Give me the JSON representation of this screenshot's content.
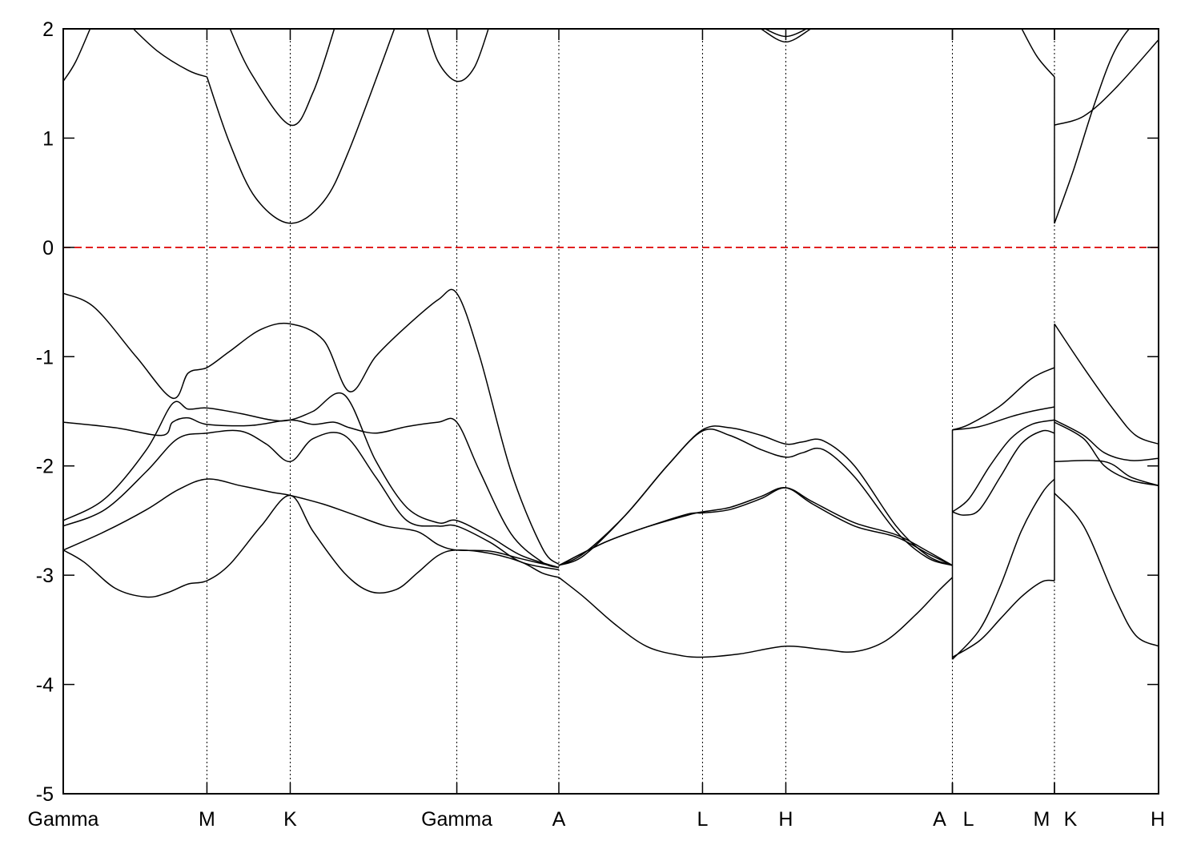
{
  "chart_data": {
    "type": "line",
    "title": "",
    "xlabel": "",
    "ylabel": "",
    "xlim": [
      0,
      10.52
    ],
    "ylim": [
      -5,
      2
    ],
    "yticks": [
      -5,
      -4,
      -3,
      -2,
      -1,
      0,
      1,
      2
    ],
    "ytick_labels": [
      "-5",
      "-4",
      "-3",
      "-2",
      "-1",
      "0",
      "1",
      "2"
    ],
    "high_symmetry_points": [
      {
        "label": "Gamma",
        "x": 0
      },
      {
        "label": "M",
        "x": 1.38
      },
      {
        "label": "K",
        "x": 2.18
      },
      {
        "label": "Gamma",
        "x": 3.78
      },
      {
        "label": "A",
        "x": 4.76
      },
      {
        "label": "L",
        "x": 6.14
      },
      {
        "label": "H",
        "x": 6.94
      },
      {
        "label": "A",
        "x": 8.54
      },
      {
        "label": "L",
        "x": 8.54
      },
      {
        "label": "M",
        "x": 9.52
      },
      {
        "label": "K",
        "x": 9.52
      },
      {
        "label": "H",
        "x": 10.52
      }
    ],
    "fermi_level": {
      "y": 0,
      "color": "#dd0000",
      "style": "dashed"
    },
    "line_color": "#000000",
    "grid": "vertical dotted lines at high-symmetry points",
    "series": [
      {
        "x": [
          0,
          0.12,
          0.28
        ],
        "y": [
          1.52,
          1.7,
          2.05
        ]
      },
      {
        "x": [
          0.62,
          0.9,
          1.2,
          1.38
        ],
        "y": [
          2.05,
          1.8,
          1.62,
          1.56
        ]
      },
      {
        "x": [
          1.38,
          1.6,
          1.85,
          2.18,
          2.5,
          2.75,
          3.2
        ],
        "y": [
          1.56,
          0.95,
          0.45,
          0.22,
          0.42,
          0.9,
          2.05
        ]
      },
      {
        "x": [
          1.58,
          1.8,
          2.18,
          2.4,
          2.62
        ],
        "y": [
          2.05,
          1.6,
          1.12,
          1.42,
          2.05
        ]
      },
      {
        "x": [
          3.48,
          3.6,
          3.78,
          3.95,
          4.1
        ],
        "y": [
          2.05,
          1.7,
          1.52,
          1.65,
          2.05
        ]
      },
      {
        "x": [
          6.7,
          6.94,
          7.18
        ],
        "y": [
          2.0,
          1.88,
          2.0
        ]
      },
      {
        "x": [
          6.7,
          6.94,
          7.18
        ],
        "y": [
          2.02,
          1.93,
          2.02
        ]
      },
      {
        "x": [
          9.18,
          9.35,
          9.52
        ],
        "y": [
          2.05,
          1.75,
          1.56
        ]
      },
      {
        "x": [
          9.52,
          9.7,
          9.9,
          10.1,
          10.3,
          10.45
        ],
        "y": [
          0.22,
          0.7,
          1.3,
          1.8,
          2.05,
          2.0
        ]
      },
      {
        "x": [
          9.52,
          9.8,
          10.1,
          10.52
        ],
        "y": [
          1.12,
          1.2,
          1.45,
          1.9
        ]
      },
      {
        "x": [
          0,
          0.3,
          0.7,
          1.05,
          1.2,
          1.38,
          1.6,
          1.9,
          2.18,
          2.5,
          2.75,
          3.0,
          3.3,
          3.6,
          3.78,
          4.0,
          4.3,
          4.6,
          4.76
        ],
        "y": [
          -0.42,
          -0.55,
          -1.0,
          -1.38,
          -1.15,
          -1.1,
          -0.95,
          -0.75,
          -0.7,
          -0.85,
          -1.32,
          -1.0,
          -0.72,
          -0.48,
          -0.42,
          -1.0,
          -2.05,
          -2.75,
          -2.9
        ]
      },
      {
        "x": [
          0,
          0.5,
          0.95,
          1.05,
          1.2,
          1.38,
          1.8,
          2.18,
          2.4,
          2.6,
          2.75,
          3.0,
          3.3,
          3.6,
          3.78,
          4.0,
          4.3,
          4.6,
          4.76
        ],
        "y": [
          -1.6,
          -1.65,
          -1.72,
          -1.6,
          -1.56,
          -1.62,
          -1.63,
          -1.58,
          -1.62,
          -1.6,
          -1.65,
          -1.7,
          -1.64,
          -1.6,
          -1.6,
          -2.05,
          -2.62,
          -2.88,
          -2.93
        ]
      },
      {
        "x": [
          0,
          0.4,
          0.8,
          1.05,
          1.2,
          1.38,
          1.7,
          2.0,
          2.18,
          2.4,
          2.7,
          3.0,
          3.3,
          3.6,
          3.78,
          4.1,
          4.4,
          4.76
        ],
        "y": [
          -2.5,
          -2.3,
          -1.85,
          -1.43,
          -1.48,
          -1.47,
          -1.52,
          -1.58,
          -1.58,
          -1.5,
          -1.35,
          -1.95,
          -2.38,
          -2.52,
          -2.5,
          -2.65,
          -2.82,
          -2.93
        ]
      },
      {
        "x": [
          0,
          0.4,
          0.8,
          1.1,
          1.38,
          1.7,
          1.95,
          2.18,
          2.4,
          2.7,
          3.0,
          3.3,
          3.6,
          3.78,
          4.1,
          4.4,
          4.76
        ],
        "y": [
          -2.55,
          -2.4,
          -2.05,
          -1.75,
          -1.7,
          -1.68,
          -1.8,
          -1.96,
          -1.75,
          -1.72,
          -2.1,
          -2.5,
          -2.55,
          -2.55,
          -2.7,
          -2.88,
          -2.95
        ]
      },
      {
        "x": [
          0,
          0.4,
          0.8,
          1.1,
          1.38,
          1.7,
          2.0,
          2.18,
          2.5,
          2.8,
          3.1,
          3.4,
          3.6,
          3.78,
          4.1,
          4.4,
          4.76
        ],
        "y": [
          -2.77,
          -2.6,
          -2.4,
          -2.22,
          -2.12,
          -2.18,
          -2.24,
          -2.27,
          -2.35,
          -2.45,
          -2.55,
          -2.6,
          -2.72,
          -2.77,
          -2.78,
          -2.85,
          -2.93
        ]
      },
      {
        "x": [
          0,
          0.2,
          0.5,
          0.8,
          1.0,
          1.2,
          1.38,
          1.6,
          1.9,
          2.18,
          2.4,
          2.7,
          2.95,
          3.2,
          3.4,
          3.6,
          3.78,
          4.1,
          4.4,
          4.6,
          4.76
        ],
        "y": [
          -2.77,
          -2.88,
          -3.12,
          -3.2,
          -3.16,
          -3.08,
          -3.05,
          -2.9,
          -2.55,
          -2.27,
          -2.6,
          -2.98,
          -3.15,
          -3.13,
          -2.98,
          -2.82,
          -2.77,
          -2.8,
          -2.88,
          -2.98,
          -3.02
        ]
      },
      {
        "x": [
          4.76,
          5.2,
          5.6,
          6.0,
          6.14,
          6.4,
          6.7,
          6.94,
          7.2,
          7.6,
          8.0,
          8.3,
          8.54
        ],
        "y": [
          -2.91,
          -2.7,
          -2.56,
          -2.45,
          -2.42,
          -2.38,
          -2.28,
          -2.2,
          -2.35,
          -2.55,
          -2.65,
          -2.8,
          -2.91
        ]
      },
      {
        "x": [
          4.76,
          5.2,
          5.6,
          6.0,
          6.14,
          6.4,
          6.7,
          6.94,
          7.2,
          7.6,
          8.0,
          8.3,
          8.54
        ],
        "y": [
          -2.91,
          -2.7,
          -2.56,
          -2.44,
          -2.43,
          -2.4,
          -2.3,
          -2.2,
          -2.33,
          -2.52,
          -2.63,
          -2.78,
          -2.91
        ]
      },
      {
        "x": [
          4.76,
          5.0,
          5.4,
          5.8,
          6.14,
          6.4,
          6.7,
          6.94,
          7.1,
          7.3,
          7.6,
          8.0,
          8.3,
          8.54
        ],
        "y": [
          -2.91,
          -2.8,
          -2.45,
          -2.0,
          -1.67,
          -1.65,
          -1.72,
          -1.8,
          -1.78,
          -1.77,
          -2.0,
          -2.55,
          -2.82,
          -2.91
        ]
      },
      {
        "x": [
          4.76,
          5.0,
          5.4,
          5.8,
          6.14,
          6.4,
          6.7,
          6.94,
          7.1,
          7.3,
          7.6,
          8.0,
          8.3,
          8.54
        ],
        "y": [
          -2.91,
          -2.82,
          -2.45,
          -2.0,
          -1.68,
          -1.72,
          -1.85,
          -1.92,
          -1.88,
          -1.85,
          -2.1,
          -2.6,
          -2.84,
          -2.91
        ]
      },
      {
        "x": [
          4.76,
          5.0,
          5.3,
          5.6,
          5.9,
          6.14,
          6.5,
          6.94,
          7.3,
          7.6,
          7.9,
          8.2,
          8.4,
          8.54
        ],
        "y": [
          -3.02,
          -3.2,
          -3.45,
          -3.65,
          -3.73,
          -3.75,
          -3.72,
          -3.65,
          -3.68,
          -3.7,
          -3.6,
          -3.35,
          -3.15,
          -3.02
        ]
      },
      {
        "x": [
          8.54,
          8.7,
          9.0,
          9.3,
          9.52
        ],
        "y": [
          -1.67,
          -1.62,
          -1.45,
          -1.2,
          -1.1
        ]
      },
      {
        "x": [
          8.54,
          8.8,
          9.1,
          9.3,
          9.52
        ],
        "y": [
          -1.67,
          -1.64,
          -1.55,
          -1.5,
          -1.46
        ]
      },
      {
        "x": [
          8.54,
          8.7,
          8.9,
          9.1,
          9.3,
          9.52
        ],
        "y": [
          -2.42,
          -2.3,
          -2.0,
          -1.75,
          -1.62,
          -1.58
        ]
      },
      {
        "x": [
          8.54,
          8.65,
          8.8,
          9.0,
          9.2,
          9.4,
          9.52
        ],
        "y": [
          -2.42,
          -2.45,
          -2.4,
          -2.1,
          -1.8,
          -1.68,
          -1.7
        ]
      },
      {
        "x": [
          8.54,
          8.8,
          9.0,
          9.2,
          9.4,
          9.52
        ],
        "y": [
          -3.77,
          -3.5,
          -3.1,
          -2.6,
          -2.25,
          -2.12
        ]
      },
      {
        "x": [
          8.54,
          8.8,
          9.0,
          9.2,
          9.4,
          9.52
        ],
        "y": [
          -3.75,
          -3.6,
          -3.4,
          -3.2,
          -3.06,
          -3.05
        ]
      },
      {
        "x": [
          9.52,
          9.8,
          10.1,
          10.3,
          10.52
        ],
        "y": [
          -0.7,
          -1.1,
          -1.5,
          -1.72,
          -1.8
        ]
      },
      {
        "x": [
          9.52,
          9.8,
          10.0,
          10.25,
          10.52
        ],
        "y": [
          -1.58,
          -1.72,
          -1.88,
          -1.95,
          -1.93
        ]
      },
      {
        "x": [
          9.52,
          9.8,
          10.0,
          10.25,
          10.52
        ],
        "y": [
          -1.6,
          -1.75,
          -2.0,
          -2.13,
          -2.18
        ]
      },
      {
        "x": [
          9.52,
          10.0,
          10.25,
          10.52
        ],
        "y": [
          -1.96,
          -1.96,
          -2.1,
          -2.18
        ]
      },
      {
        "x": [
          9.52,
          9.8,
          10.1,
          10.3,
          10.52
        ],
        "y": [
          -2.25,
          -2.55,
          -3.2,
          -3.55,
          -3.65
        ]
      }
    ],
    "vertical_jumps": [
      {
        "x": 8.54,
        "y_from": -1.67,
        "y_to": -3.77
      },
      {
        "x": 9.52,
        "y_from": -0.7,
        "y_to": -3.05
      },
      {
        "x": 9.52,
        "y_from": 0.22,
        "y_to": 1.56
      }
    ]
  }
}
